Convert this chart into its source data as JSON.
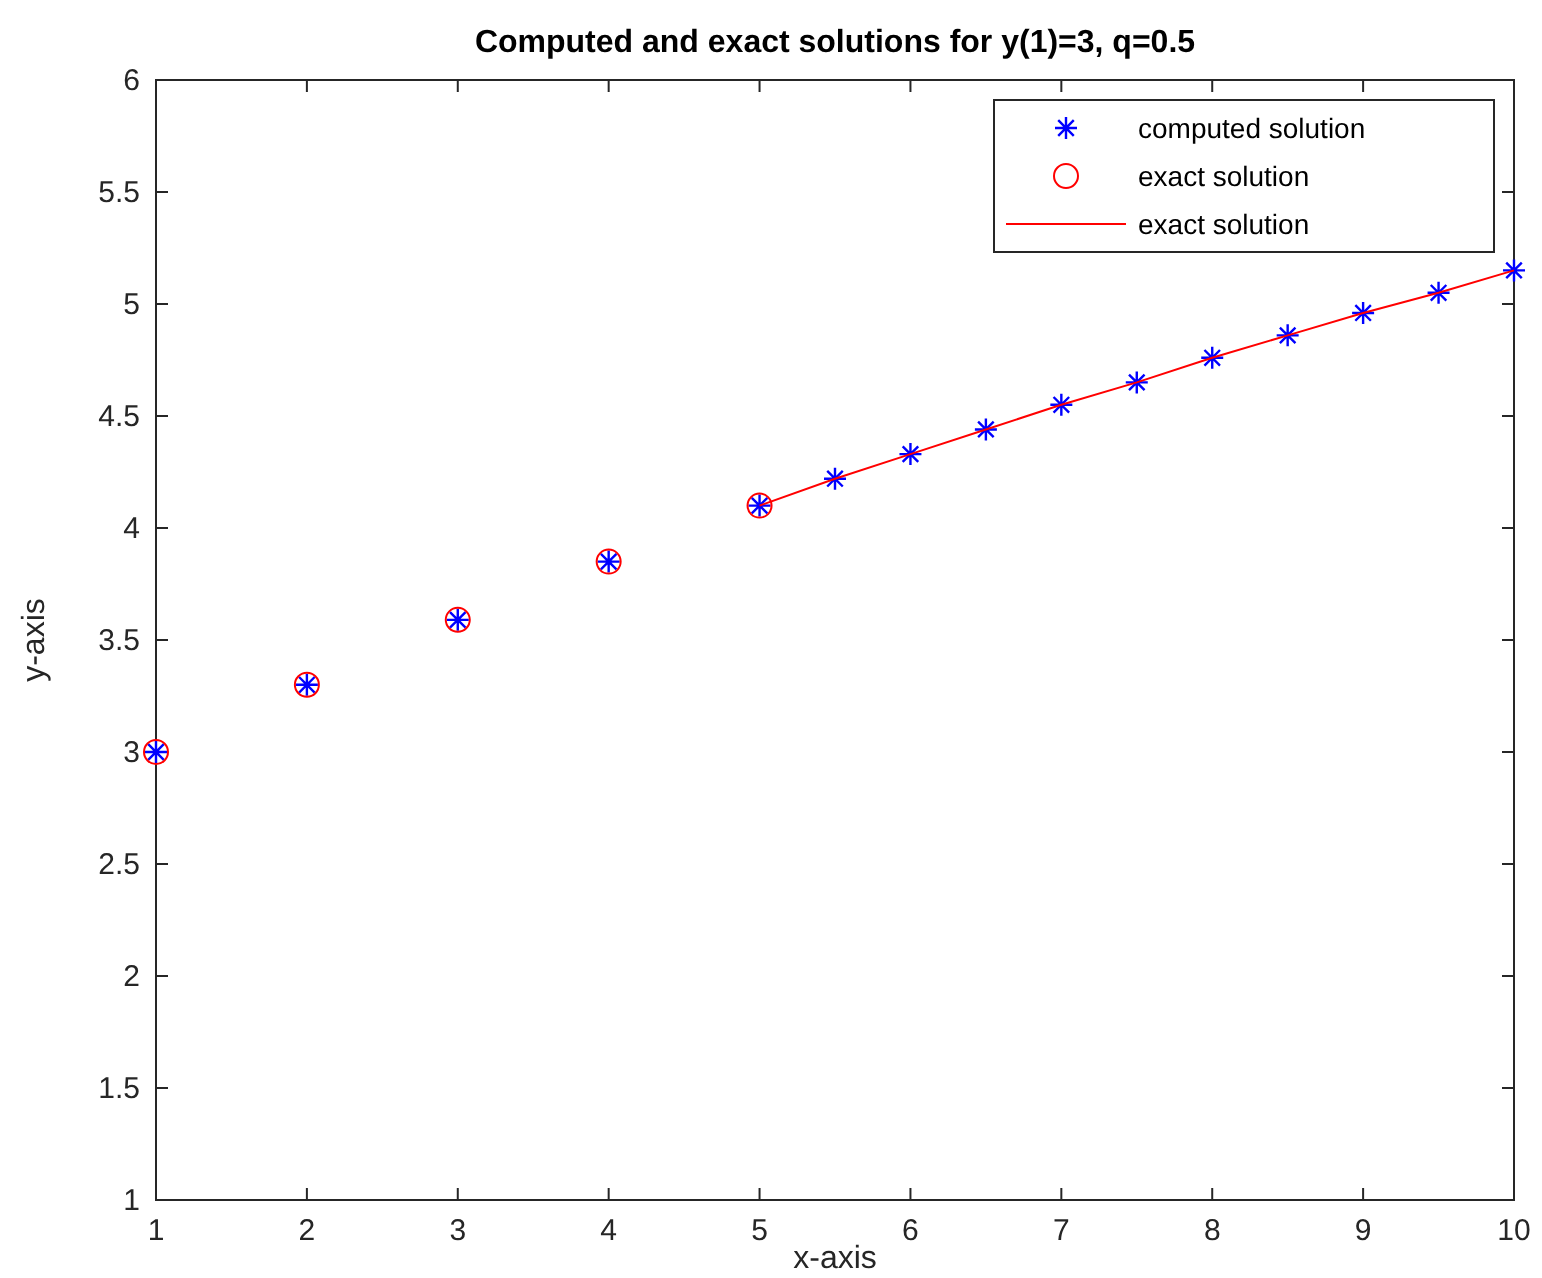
{
  "chart_data": {
    "type": "scatter",
    "title": "Computed and exact solutions for y(1)=3, q=0.5",
    "xlabel": "x-axis",
    "ylabel": "y-axis",
    "xlim": [
      1,
      10
    ],
    "xticks": [
      1,
      2,
      3,
      4,
      5,
      6,
      7,
      8,
      9,
      10
    ],
    "ylim": [
      1,
      6
    ],
    "yticks": [
      1,
      1.5,
      2,
      2.5,
      3,
      3.5,
      4,
      4.5,
      5,
      5.5,
      6
    ],
    "legend": "top right",
    "grid": false,
    "series": [
      {
        "name": "computed solution",
        "marker": "cross",
        "color": "#0000ff",
        "x": [
          1,
          2,
          3,
          4,
          5,
          5.5,
          6,
          6.5,
          7,
          7.5,
          8,
          8.5,
          9,
          9.5,
          10
        ],
        "values": [
          3,
          3.3,
          3.59,
          3.85,
          4.1,
          4.22,
          4.33,
          4.44,
          4.55,
          4.65,
          4.76,
          4.86,
          4.96,
          5.05,
          5.15
        ]
      },
      {
        "name": "exact solution",
        "marker": "circle",
        "color": "#ff0000",
        "x": [
          1,
          2,
          3,
          4,
          5
        ],
        "values": [
          3,
          3.3,
          3.59,
          3.85,
          4.1
        ]
      },
      {
        "name": "exact solution",
        "type": "line",
        "marker": "none",
        "line_style": "solid",
        "color": "#ff0000",
        "x": [
          5,
          5.5,
          6,
          6.5,
          7,
          7.5,
          8,
          8.5,
          9,
          9.5,
          10
        ],
        "values": [
          4.1,
          4.22,
          4.33,
          4.44,
          4.55,
          4.65,
          4.76,
          4.86,
          4.96,
          5.05,
          5.15
        ]
      }
    ]
  }
}
